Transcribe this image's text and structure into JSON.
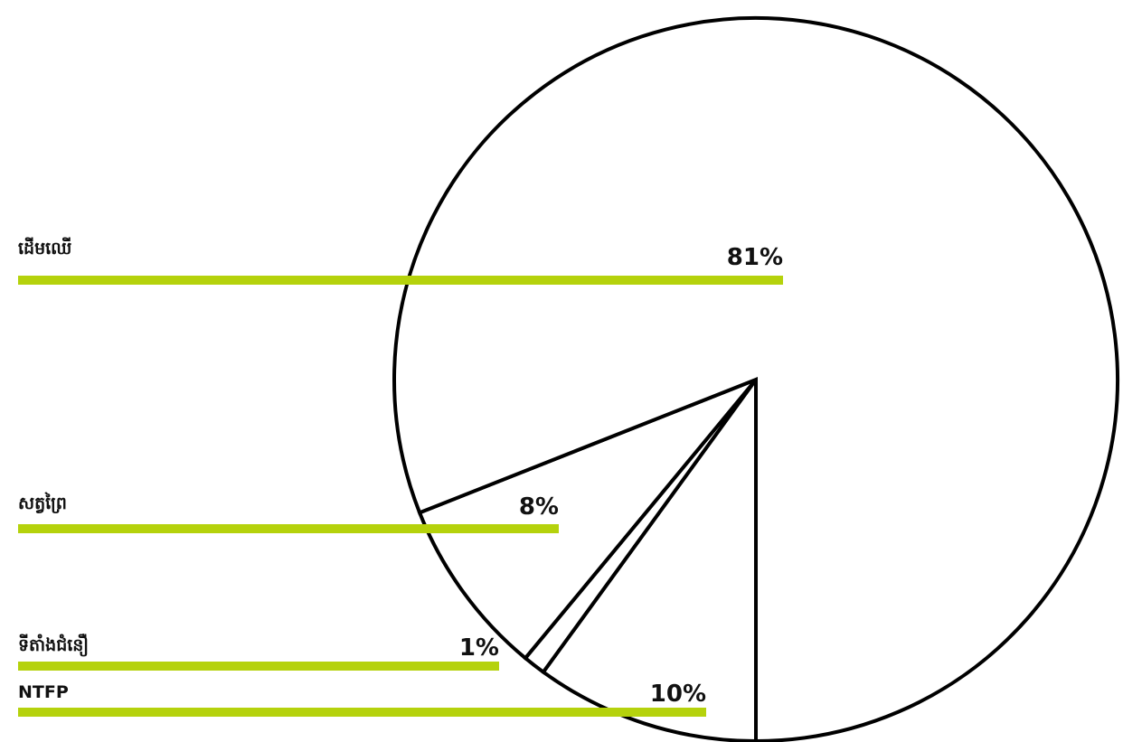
{
  "chart_data": {
    "type": "pie",
    "categories": [
      "ដើមឈើ",
      "សត្វព្រៃ",
      "ទីតាំងជំនឿ",
      "NTFP"
    ],
    "values": [
      81,
      8,
      1,
      10
    ],
    "value_labels": [
      "81%",
      "8%",
      "1%",
      "10%"
    ],
    "title": "",
    "legend": "left",
    "colors": {
      "slice_fill": "#ffffff",
      "slice_stroke": "#000000",
      "leader_bar": "#b5d20c",
      "text": "#111111"
    }
  }
}
